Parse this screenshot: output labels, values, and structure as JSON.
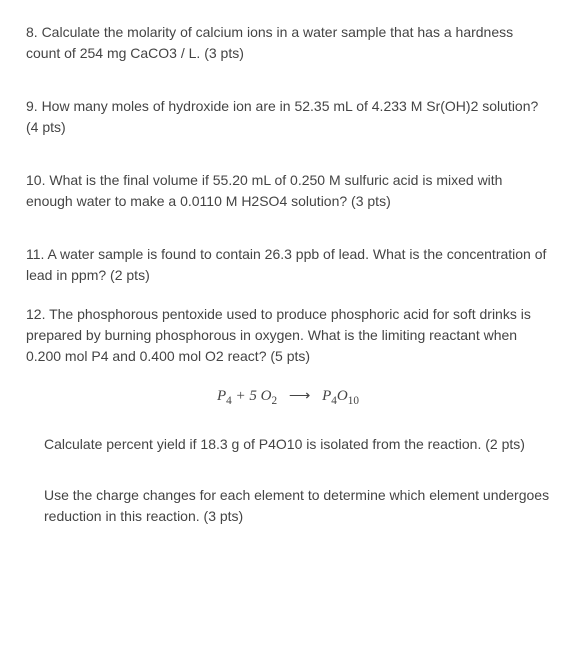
{
  "questions": {
    "q8": "8.  Calculate the molarity of calcium ions in a water sample that has a hardness count of 254 mg CaCO3 / L. (3 pts)",
    "q9": "9.  How many moles of hydroxide ion are in 52.35 mL of 4.233 M Sr(OH)2 solution? (4 pts)",
    "q10": "10.  What is the final volume if 55.20 mL of 0.250 M sulfuric acid is mixed with enough water to make a 0.0110 M H2SO4 solution? (3 pts)",
    "q11": "11.  A water sample is found to contain 26.3 ppb of lead. What is the concentration of lead in ppm? (2 pts)",
    "q12": "12.  The phosphorous pentoxide used to produce phosphoric acid for soft drinks is prepared by burning phosphorous in oxygen. What is the limiting reactant when 0.200 mol P4 and 0.400 mol O2 react? (5 pts)",
    "q12b": "Calculate percent yield if 18.3 g  of P4O10 is isolated from the reaction. (2 pts)",
    "q12c": "Use the charge changes for each element to determine which element undergoes reduction in this reaction. (3 pts)"
  },
  "equation": {
    "reactant1": "P",
    "reactant1_sub": "4",
    "plus": " + 5 ",
    "reactant2": "O",
    "reactant2_sub": "2",
    "arrow": "⟶",
    "product": "P",
    "product_sub1": "4",
    "product2": "O",
    "product_sub2": "10"
  },
  "colors": {
    "text": "#444444",
    "background": "#ffffff"
  }
}
